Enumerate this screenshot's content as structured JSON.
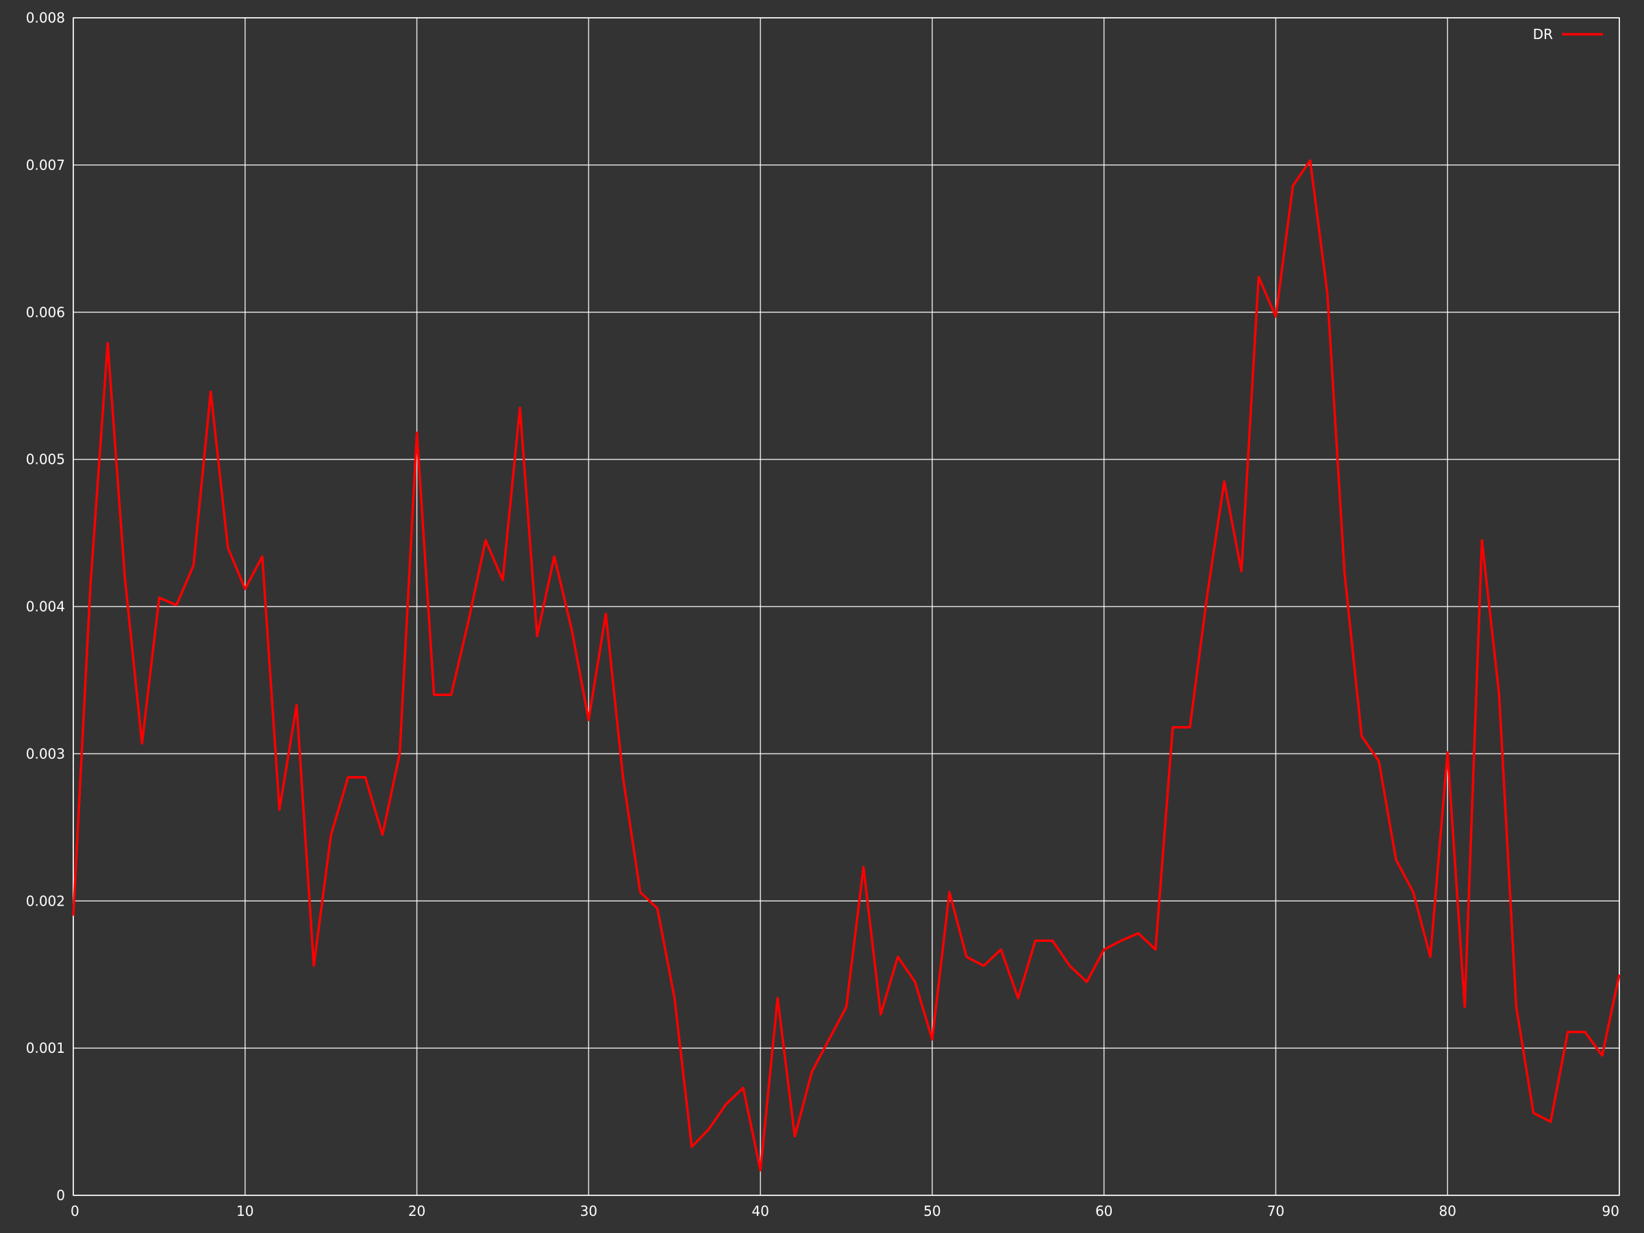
{
  "chart_data": {
    "type": "line",
    "title": "",
    "xlabel": "",
    "ylabel": "",
    "xlim": [
      0,
      90
    ],
    "ylim": [
      0,
      0.008
    ],
    "x_ticks": [
      0,
      10,
      20,
      30,
      40,
      50,
      60,
      70,
      80,
      90
    ],
    "x_tick_labels": [
      "0",
      "10",
      "20",
      "30",
      "40",
      "50",
      "60",
      "70",
      "80",
      "90"
    ],
    "y_ticks": [
      0,
      0.001,
      0.002,
      0.003,
      0.004,
      0.005,
      0.006,
      0.007,
      0.008
    ],
    "y_tick_labels": [
      "0",
      "0.001",
      "0.002",
      "0.003",
      "0.004",
      "0.005",
      "0.006",
      "0.007",
      "0.008"
    ],
    "grid": true,
    "legend_position": "top-right",
    "background_color": "#333333",
    "grid_color": "#ffffff",
    "series": [
      {
        "name": "DR",
        "color": "#ff0000",
        "x": [
          0,
          1,
          2,
          3,
          4,
          5,
          6,
          7,
          8,
          9,
          10,
          11,
          12,
          13,
          14,
          15,
          16,
          17,
          18,
          19,
          20,
          21,
          22,
          23,
          24,
          25,
          26,
          27,
          28,
          29,
          30,
          31,
          32,
          33,
          34,
          35,
          36,
          37,
          38,
          39,
          40,
          41,
          42,
          43,
          44,
          45,
          46,
          47,
          48,
          49,
          50,
          51,
          52,
          53,
          54,
          55,
          56,
          57,
          58,
          59,
          60,
          61,
          62,
          63,
          64,
          65,
          66,
          67,
          68,
          69,
          70,
          71,
          72,
          73,
          74,
          75,
          76,
          77,
          78,
          79,
          80,
          81,
          82,
          83,
          84,
          85,
          86,
          87,
          88,
          89,
          90
        ],
        "y": [
          0.0019,
          0.00415,
          0.00579,
          0.0042,
          0.00307,
          0.00406,
          0.00401,
          0.00428,
          0.00546,
          0.0044,
          0.00412,
          0.00434,
          0.00262,
          0.00333,
          0.00156,
          0.00245,
          0.00284,
          0.00284,
          0.00245,
          0.003,
          0.00518,
          0.0034,
          0.0034,
          0.0039,
          0.00445,
          0.00418,
          0.00535,
          0.0038,
          0.00434,
          0.00385,
          0.00323,
          0.00395,
          0.00284,
          0.00206,
          0.00195,
          0.00134,
          0.00033,
          0.00045,
          0.00062,
          0.00073,
          0.00017,
          0.00134,
          0.0004,
          0.00084,
          0.00106,
          0.00128,
          0.00223,
          0.00123,
          0.00162,
          0.00145,
          0.00106,
          0.00206,
          0.00162,
          0.00156,
          0.00167,
          0.00134,
          0.00173,
          0.00173,
          0.00156,
          0.00145,
          0.00167,
          0.00173,
          0.00178,
          0.00167,
          0.00318,
          0.00318,
          0.00407,
          0.00485,
          0.00424,
          0.00624,
          0.00597,
          0.00686,
          0.00703,
          0.00613,
          0.00423,
          0.00312,
          0.00295,
          0.00228,
          0.00206,
          0.00162,
          0.00301,
          0.00128,
          0.00445,
          0.0034,
          0.00128,
          0.00056,
          0.0005,
          0.00111,
          0.00111,
          0.00095,
          0.0015
        ]
      }
    ]
  }
}
